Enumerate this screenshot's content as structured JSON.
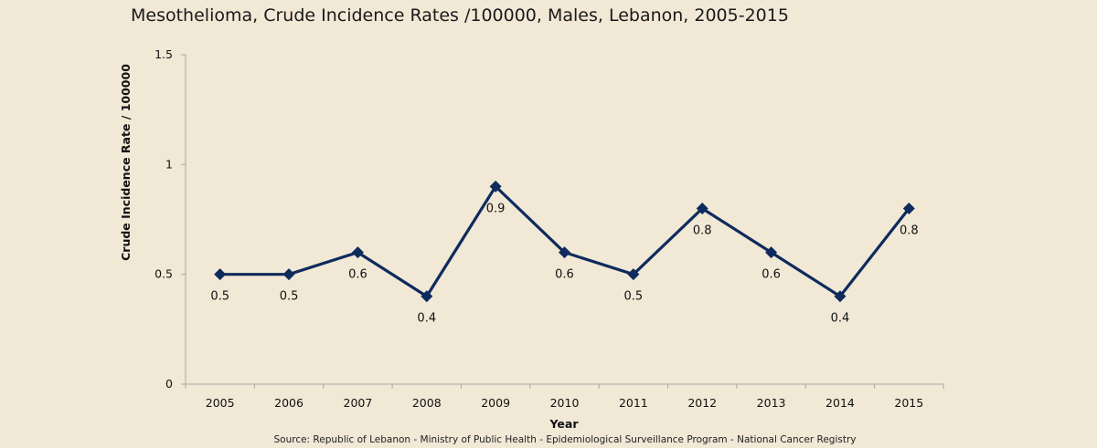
{
  "chart_data": {
    "type": "line",
    "title": "Mesothelioma, Crude Incidence Rates /100000,   Males, Lebanon, 2005-2015",
    "xlabel": "Year",
    "ylabel": "Crude Incidence Rate / 100000",
    "categories": [
      "2005",
      "2006",
      "2007",
      "2008",
      "2009",
      "2010",
      "2011",
      "2012",
      "2013",
      "2014",
      "2015"
    ],
    "series": [
      {
        "values": [
          0.5,
          0.5,
          0.6,
          0.4,
          0.9,
          0.6,
          0.5,
          0.8,
          0.6,
          0.4,
          0.8
        ],
        "data_labels": [
          "0.5",
          "0.5",
          "0.6",
          "0.4",
          "0.9",
          "0.6",
          "0.5",
          "0.8",
          "0.6",
          "0.4",
          "0.8"
        ],
        "color": "#0F2A5C",
        "marker": "diamond"
      }
    ],
    "ylim": [
      0,
      1.5
    ],
    "yticks": [
      0,
      0.5,
      1,
      1.5
    ],
    "ytick_labels": [
      "0",
      "0.5",
      "1",
      "1.5"
    ],
    "grid": false,
    "legend": "none",
    "source": "Source: Republic of Lebanon - Ministry of Public Health - Epidemiological Surveillance Program - National Cancer Registry",
    "colors": {
      "background": "#F1E8D6",
      "axis": "#A8A8A8",
      "line": "#0F2A5C"
    }
  }
}
